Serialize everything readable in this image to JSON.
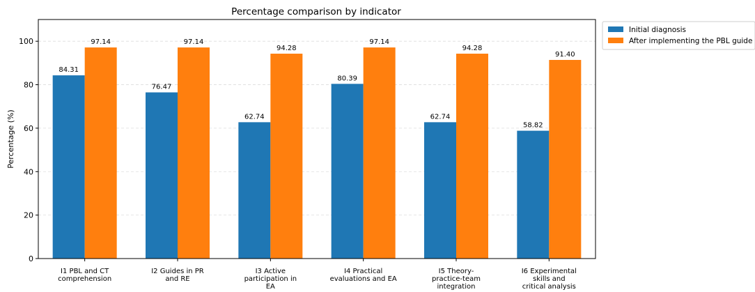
{
  "chart_data": {
    "type": "bar",
    "title": "Percentage comparison by indicator",
    "xlabel": "",
    "ylabel": "Percentage (%)",
    "ylim": [
      0,
      110
    ],
    "yticks": [
      0,
      20,
      40,
      60,
      80,
      100
    ],
    "grid": "horizontal dashed",
    "legend_position": "outside top-right",
    "categories": [
      [
        "I1 PBL and CT",
        "comprehension"
      ],
      [
        "I2 Guides in PR",
        "and RE"
      ],
      [
        "I3 Active",
        "participation in",
        "EA"
      ],
      [
        "I4 Practical",
        "evaluations and EA"
      ],
      [
        "I5 Theory-",
        "practice-team",
        "integration"
      ],
      [
        "I6 Experimental",
        "skills and",
        "critical analysis"
      ]
    ],
    "series": [
      {
        "name": "Initial diagnosis",
        "color": "#1f77b4",
        "values": [
          84.31,
          76.47,
          62.74,
          80.39,
          62.74,
          58.82
        ],
        "labels": [
          "84.31",
          "76.47",
          "62.74",
          "80.39",
          "62.74",
          "58.82"
        ]
      },
      {
        "name": "After implementing the PBL guide",
        "color": "#ff7f0e",
        "values": [
          97.14,
          97.14,
          94.28,
          97.14,
          94.28,
          91.4
        ],
        "labels": [
          "97.14",
          "97.14",
          "94.28",
          "97.14",
          "94.28",
          "91.40"
        ]
      }
    ]
  }
}
